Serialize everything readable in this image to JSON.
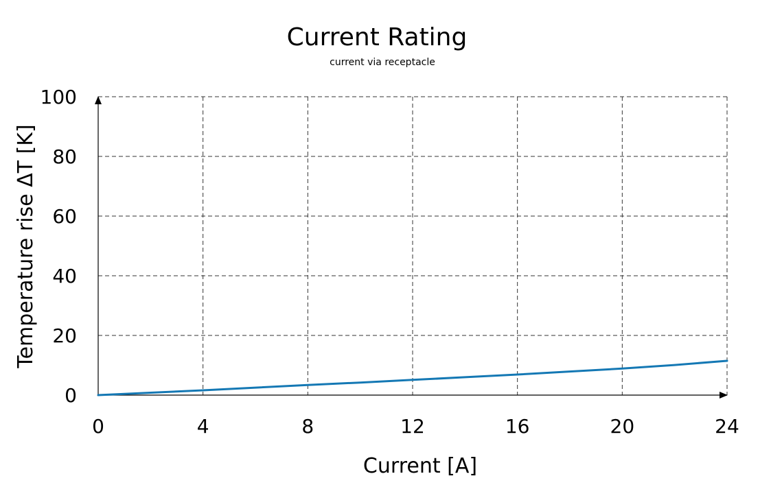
{
  "chart_data": {
    "type": "line",
    "title": "Current Rating",
    "subtitle": "current via receptacle",
    "xlabel": "Current [A]",
    "ylabel": "Temperature rise ΔT [K]",
    "xlim": [
      0,
      24
    ],
    "ylim": [
      0,
      100
    ],
    "x_ticks": [
      0,
      4,
      8,
      12,
      16,
      20,
      24
    ],
    "y_ticks": [
      0,
      20,
      40,
      60,
      80,
      100
    ],
    "grid": true,
    "legend": "none",
    "series": [
      {
        "color": "#1478b4",
        "x": [
          0,
          2,
          4,
          6,
          8,
          10,
          12,
          14,
          16,
          18,
          20,
          22,
          24
        ],
        "y": [
          0,
          0.8,
          1.6,
          2.5,
          3.4,
          4.2,
          5.1,
          6.0,
          6.9,
          7.9,
          8.9,
          10.1,
          11.5
        ]
      }
    ]
  }
}
